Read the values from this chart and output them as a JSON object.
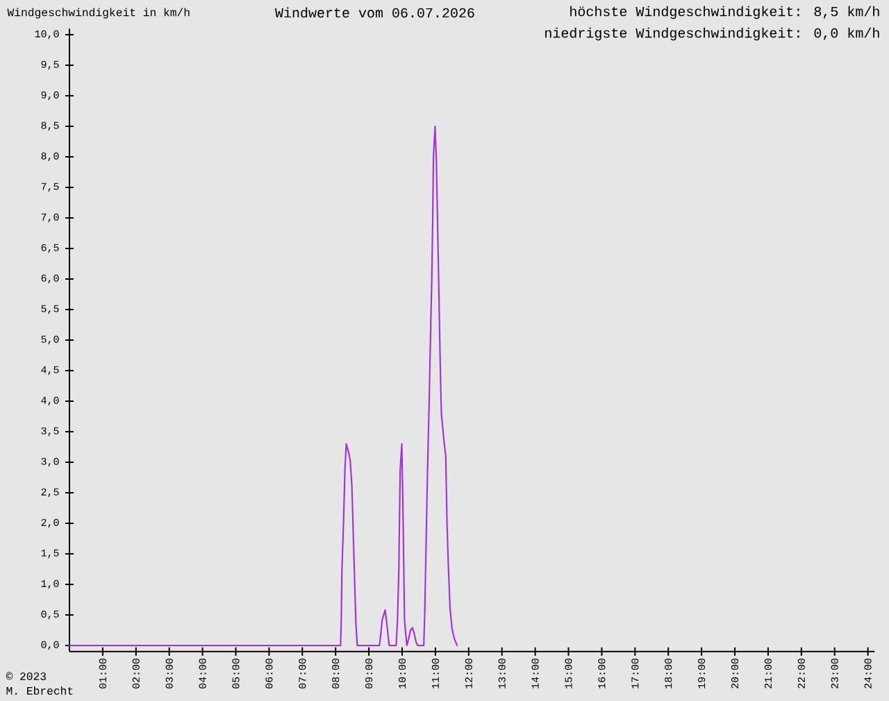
{
  "chart_data": {
    "type": "line",
    "title": "Windwerte vom 06.07.2026",
    "ylabel": "Windgeschwindigkeit in km/h",
    "annotations": [
      "höchste Windgeschwindigkeit: 8,5 km/h",
      "niedrigste Windgeschwindigkeit: 0,0 km/h",
      "© 2023",
      "M. Ebrecht"
    ],
    "x": [
      0,
      8.15,
      8.17,
      8.19,
      8.24,
      8.28,
      8.32,
      8.36,
      8.4,
      8.44,
      8.49,
      8.53,
      8.57,
      8.61,
      8.65,
      9.32,
      9.36,
      9.4,
      9.49,
      9.53,
      9.57,
      9.61,
      9.82,
      9.86,
      9.9,
      9.94,
      9.99,
      10.03,
      10.07,
      10.14,
      10.19,
      10.25,
      10.31,
      10.36,
      10.42,
      10.47,
      10.65,
      10.68,
      10.72,
      10.76,
      10.81,
      10.85,
      10.89,
      10.92,
      10.94,
      10.99,
      11.03,
      11.07,
      11.11,
      11.15,
      11.18,
      11.22,
      11.26,
      11.31,
      11.35,
      11.39,
      11.44,
      11.5,
      11.57,
      11.65
    ],
    "series": [
      {
        "color": "#a030e0",
        "values": [
          0,
          0,
          0.42,
          1.23,
          2.05,
          2.88,
          3.3,
          3.22,
          3.14,
          3.02,
          2.6,
          1.85,
          1.08,
          0.36,
          0,
          0,
          0.2,
          0.42,
          0.58,
          0.4,
          0.2,
          0,
          0,
          0.42,
          1.23,
          2.86,
          3.3,
          2.05,
          0.42,
          0,
          0.1,
          0.25,
          0.29,
          0.2,
          0.05,
          0,
          0,
          0.55,
          1.67,
          2.8,
          3.94,
          5.0,
          5.98,
          7.0,
          7.99,
          8.5,
          7.9,
          6.77,
          5.62,
          4.47,
          3.79,
          3.56,
          3.33,
          3.11,
          1.97,
          1.29,
          0.61,
          0.27,
          0.11,
          0
        ]
      }
    ],
    "xlim": [
      0,
      24.2
    ],
    "xticks": [
      {
        "value": 1,
        "label": "01:00"
      },
      {
        "value": 2,
        "label": "02:00"
      },
      {
        "value": 3,
        "label": "03:00"
      },
      {
        "value": 4,
        "label": "04:00"
      },
      {
        "value": 5,
        "label": "05:00"
      },
      {
        "value": 6,
        "label": "06:00"
      },
      {
        "value": 7,
        "label": "07:00"
      },
      {
        "value": 8,
        "label": "08:00"
      },
      {
        "value": 9,
        "label": "09:00"
      },
      {
        "value": 10,
        "label": "10:00"
      },
      {
        "value": 11,
        "label": "11:00"
      },
      {
        "value": 12,
        "label": "12:00"
      },
      {
        "value": 13,
        "label": "13:00"
      },
      {
        "value": 14,
        "label": "14:00"
      },
      {
        "value": 15,
        "label": "15:00"
      },
      {
        "value": 16,
        "label": "16:00"
      },
      {
        "value": 17,
        "label": "17:00"
      },
      {
        "value": 18,
        "label": "18:00"
      },
      {
        "value": 19,
        "label": "19:00"
      },
      {
        "value": 20,
        "label": "20:00"
      },
      {
        "value": 21,
        "label": "21:00"
      },
      {
        "value": 22,
        "label": "22:00"
      },
      {
        "value": 23,
        "label": "23:00"
      },
      {
        "value": 24,
        "label": "24:00"
      }
    ],
    "ylim": [
      -0.1,
      10.1
    ],
    "yticks": [
      {
        "value": 0,
        "label": "0,0"
      },
      {
        "value": 0.5,
        "label": "0,5"
      },
      {
        "value": 1,
        "label": "1,0"
      },
      {
        "value": 1.5,
        "label": "1,5"
      },
      {
        "value": 2,
        "label": "2,0"
      },
      {
        "value": 2.5,
        "label": "2,5"
      },
      {
        "value": 3,
        "label": "3,0"
      },
      {
        "value": 3.5,
        "label": "3,5"
      },
      {
        "value": 4,
        "label": "4,0"
      },
      {
        "value": 4.5,
        "label": "4,5"
      },
      {
        "value": 5,
        "label": "5,0"
      },
      {
        "value": 5.5,
        "label": "5,5"
      },
      {
        "value": 6,
        "label": "6,0"
      },
      {
        "value": 6.5,
        "label": "6,5"
      },
      {
        "value": 7,
        "label": "7,0"
      },
      {
        "value": 7.5,
        "label": "7,5"
      },
      {
        "value": 8,
        "label": "8,0"
      },
      {
        "value": 8.5,
        "label": "8,5"
      },
      {
        "value": 9,
        "label": "9,0"
      },
      {
        "value": 9.5,
        "label": "9,5"
      },
      {
        "value": 10,
        "label": "10,0"
      }
    ]
  }
}
